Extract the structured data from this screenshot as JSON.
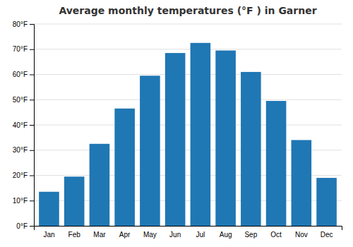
{
  "chart_data": {
    "type": "bar",
    "title": "Average monthly temperatures (°F ) in Garner",
    "categories": [
      "Jan",
      "Feb",
      "Mar",
      "Apr",
      "May",
      "Jun",
      "Jul",
      "Aug",
      "Sep",
      "Oct",
      "Nov",
      "Dec"
    ],
    "values": [
      13.5,
      19.5,
      32.5,
      46.5,
      59.5,
      68.5,
      72.5,
      69.5,
      61.0,
      49.5,
      34.0,
      19.0
    ],
    "ylim": [
      0,
      80
    ],
    "yticks": [
      {
        "value": 0,
        "label": "0°F"
      },
      {
        "value": 10,
        "label": "10°F"
      },
      {
        "value": 20,
        "label": "20°F"
      },
      {
        "value": 30,
        "label": "30°F"
      },
      {
        "value": 40,
        "label": "40°F"
      },
      {
        "value": 50,
        "label": "50°F"
      },
      {
        "value": 60,
        "label": "60°F"
      },
      {
        "value": 70,
        "label": "70°F"
      },
      {
        "value": 80,
        "label": "80°F"
      }
    ],
    "grid": true
  }
}
